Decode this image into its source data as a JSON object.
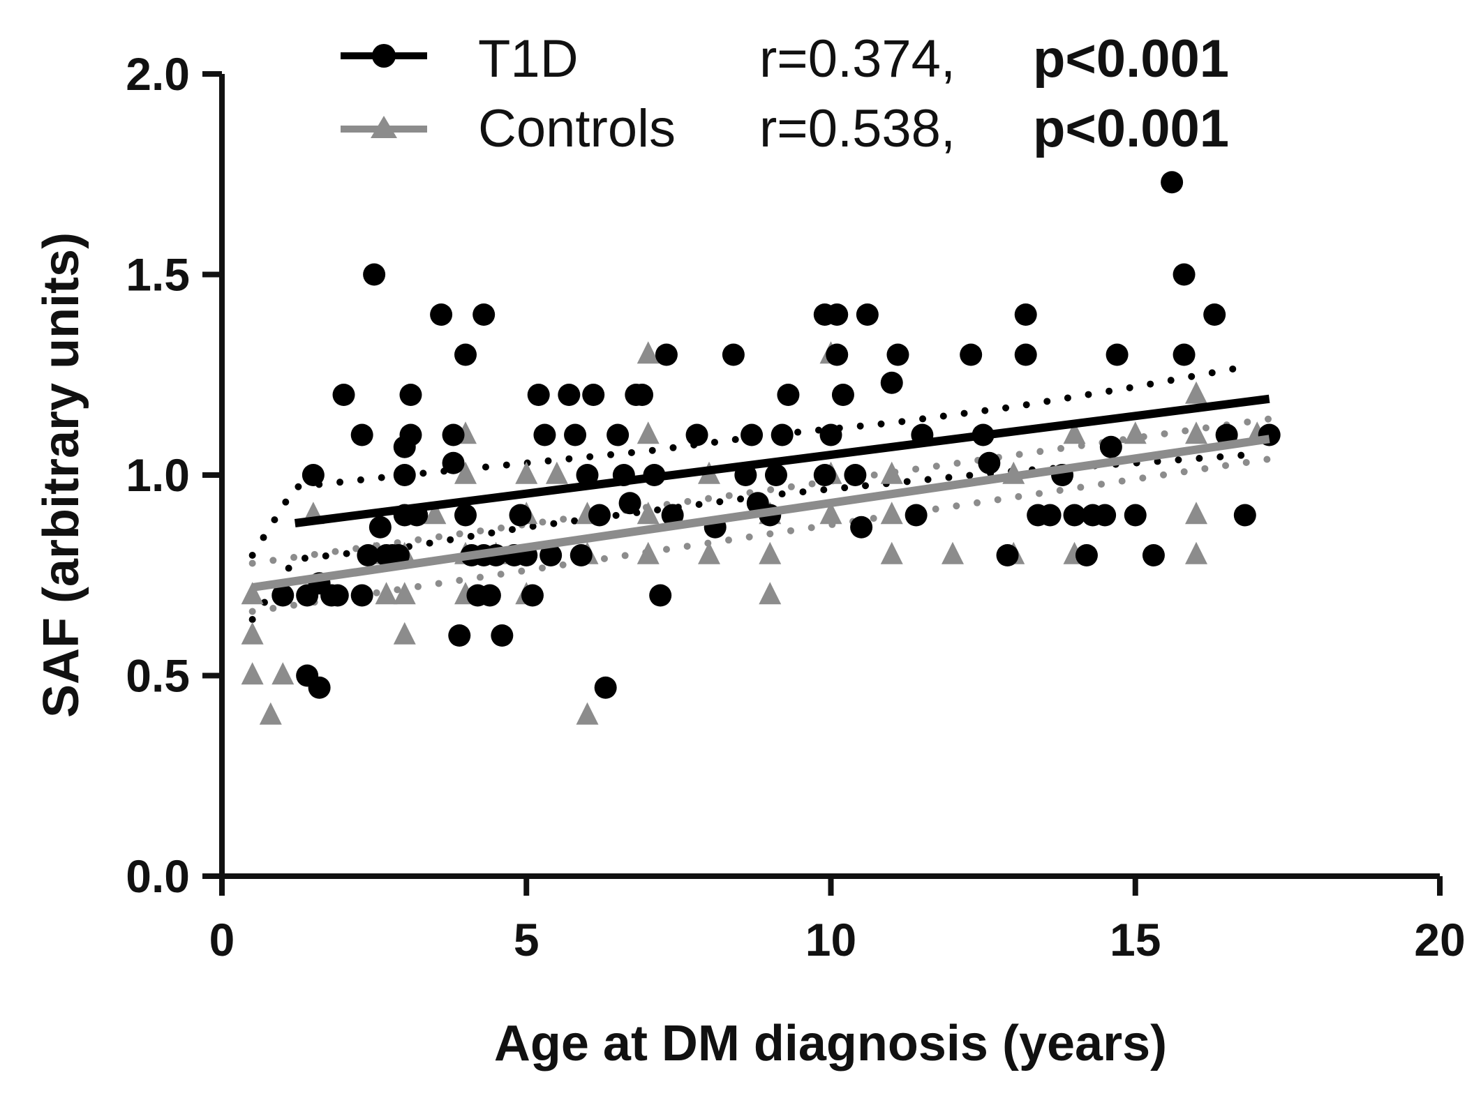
{
  "chart_data": {
    "type": "scatter",
    "title": "",
    "xlabel": "Age at DM diagnosis (years)",
    "ylabel": "SAF (arbitrary units)",
    "xlim": [
      0,
      20
    ],
    "ylim": [
      0,
      2.0
    ],
    "x_ticks": [
      "0",
      "5",
      "10",
      "15",
      "20"
    ],
    "y_ticks": [
      "0.0",
      "0.5",
      "1.0",
      "1.5",
      "2.0"
    ],
    "grid": false,
    "legend_position": "top",
    "series": [
      {
        "name": "T1D",
        "r_text": "r=0.374,",
        "p_text": "p<0.001",
        "marker": "circle",
        "color": "#000000",
        "regression": {
          "x": [
            1.2,
            17.2
          ],
          "y": [
            0.88,
            1.19
          ]
        },
        "ci_upper": {
          "x": [
            0.5,
            1.2,
            3,
            5,
            7,
            9,
            11,
            13,
            15,
            16.8
          ],
          "y": [
            0.8,
            0.97,
            1.0,
            1.03,
            1.06,
            1.1,
            1.13,
            1.17,
            1.22,
            1.27
          ]
        },
        "ci_lower": {
          "x": [
            0.5,
            1.2,
            3,
            5,
            7,
            9,
            11,
            13,
            15,
            16.8
          ],
          "y": [
            0.64,
            0.79,
            0.82,
            0.87,
            0.91,
            0.95,
            0.98,
            1.01,
            1.03,
            1.05
          ]
        },
        "points": [
          [
            1.0,
            0.7
          ],
          [
            1.4,
            0.5
          ],
          [
            1.4,
            0.7
          ],
          [
            1.5,
            1.0
          ],
          [
            1.6,
            0.47
          ],
          [
            1.6,
            0.73
          ],
          [
            1.8,
            0.7
          ],
          [
            1.9,
            0.7
          ],
          [
            2.0,
            1.2
          ],
          [
            2.3,
            1.1
          ],
          [
            2.3,
            0.7
          ],
          [
            2.4,
            0.8
          ],
          [
            2.5,
            1.5
          ],
          [
            2.6,
            0.87
          ],
          [
            2.7,
            0.8
          ],
          [
            2.8,
            0.8
          ],
          [
            2.9,
            0.8
          ],
          [
            3.0,
            1.07
          ],
          [
            3.0,
            1.0
          ],
          [
            3.0,
            0.9
          ],
          [
            3.1,
            1.1
          ],
          [
            3.1,
            1.2
          ],
          [
            3.2,
            0.9
          ],
          [
            3.6,
            1.4
          ],
          [
            3.8,
            1.1
          ],
          [
            3.8,
            1.03
          ],
          [
            3.9,
            0.6
          ],
          [
            4.0,
            1.3
          ],
          [
            4.0,
            0.9
          ],
          [
            4.1,
            0.8
          ],
          [
            4.2,
            0.7
          ],
          [
            4.3,
            1.4
          ],
          [
            4.3,
            0.8
          ],
          [
            4.4,
            0.7
          ],
          [
            4.5,
            0.8
          ],
          [
            4.6,
            0.6
          ],
          [
            4.8,
            0.8
          ],
          [
            4.9,
            0.9
          ],
          [
            5.0,
            0.8
          ],
          [
            5.1,
            0.7
          ],
          [
            5.2,
            1.2
          ],
          [
            5.3,
            1.1
          ],
          [
            5.4,
            0.8
          ],
          [
            5.7,
            1.2
          ],
          [
            5.8,
            1.1
          ],
          [
            5.9,
            0.8
          ],
          [
            6.0,
            1.0
          ],
          [
            6.1,
            1.2
          ],
          [
            6.2,
            0.9
          ],
          [
            6.3,
            0.47
          ],
          [
            6.5,
            1.1
          ],
          [
            6.6,
            1.0
          ],
          [
            6.7,
            0.93
          ],
          [
            6.8,
            1.2
          ],
          [
            6.9,
            1.2
          ],
          [
            7.1,
            1.0
          ],
          [
            7.2,
            0.7
          ],
          [
            7.3,
            1.3
          ],
          [
            7.4,
            0.9
          ],
          [
            7.8,
            1.1
          ],
          [
            8.1,
            0.87
          ],
          [
            8.4,
            1.3
          ],
          [
            8.6,
            1.0
          ],
          [
            8.7,
            1.1
          ],
          [
            8.8,
            0.93
          ],
          [
            9.0,
            0.9
          ],
          [
            9.1,
            1.0
          ],
          [
            9.2,
            1.1
          ],
          [
            9.3,
            1.2
          ],
          [
            9.9,
            1.0
          ],
          [
            9.9,
            1.4
          ],
          [
            10.0,
            1.1
          ],
          [
            10.1,
            1.4
          ],
          [
            10.1,
            1.3
          ],
          [
            10.2,
            1.2
          ],
          [
            10.4,
            1.0
          ],
          [
            10.5,
            0.87
          ],
          [
            10.6,
            1.4
          ],
          [
            11.0,
            1.23
          ],
          [
            11.1,
            1.3
          ],
          [
            11.4,
            0.9
          ],
          [
            11.5,
            1.1
          ],
          [
            12.3,
            1.3
          ],
          [
            12.5,
            1.1
          ],
          [
            12.6,
            1.03
          ],
          [
            12.9,
            0.8
          ],
          [
            13.2,
            1.4
          ],
          [
            13.2,
            1.3
          ],
          [
            13.4,
            0.9
          ],
          [
            13.6,
            0.9
          ],
          [
            13.8,
            1.0
          ],
          [
            14.0,
            0.9
          ],
          [
            14.2,
            0.8
          ],
          [
            14.3,
            0.9
          ],
          [
            14.5,
            0.9
          ],
          [
            14.6,
            1.07
          ],
          [
            14.7,
            1.3
          ],
          [
            15.0,
            0.9
          ],
          [
            15.3,
            0.8
          ],
          [
            15.6,
            1.73
          ],
          [
            15.8,
            1.5
          ],
          [
            15.8,
            1.3
          ],
          [
            16.3,
            1.4
          ],
          [
            16.5,
            1.1
          ],
          [
            16.8,
            0.9
          ],
          [
            17.2,
            1.1
          ]
        ]
      },
      {
        "name": "Controls",
        "r_text": "r=0.538,",
        "p_text": "p<0.001",
        "marker": "triangle",
        "color": "#8c8c8c",
        "regression": {
          "x": [
            0.5,
            17.2
          ],
          "y": [
            0.72,
            1.09
          ]
        },
        "ci_upper": {
          "x": [
            0.5,
            17.2
          ],
          "y": [
            0.78,
            1.14
          ]
        },
        "ci_lower": {
          "x": [
            0.5,
            17.2
          ],
          "y": [
            0.66,
            1.04
          ]
        },
        "points": [
          [
            0.5,
            0.7
          ],
          [
            0.5,
            0.6
          ],
          [
            0.5,
            0.5
          ],
          [
            0.8,
            0.4
          ],
          [
            1.0,
            0.5
          ],
          [
            1.5,
            0.9
          ],
          [
            2.5,
            0.8
          ],
          [
            2.7,
            0.7
          ],
          [
            3.0,
            0.8
          ],
          [
            3.0,
            0.7
          ],
          [
            3.0,
            0.6
          ],
          [
            3.5,
            0.9
          ],
          [
            4.0,
            1.1
          ],
          [
            4.0,
            1.0
          ],
          [
            4.0,
            0.8
          ],
          [
            4.0,
            0.7
          ],
          [
            4.5,
            0.8
          ],
          [
            5.0,
            1.0
          ],
          [
            5.0,
            0.9
          ],
          [
            5.0,
            0.7
          ],
          [
            5.5,
            1.0
          ],
          [
            6.0,
            0.9
          ],
          [
            6.0,
            0.8
          ],
          [
            6.0,
            0.4
          ],
          [
            7.0,
            1.3
          ],
          [
            7.0,
            1.1
          ],
          [
            7.0,
            0.9
          ],
          [
            7.0,
            0.8
          ],
          [
            8.0,
            1.0
          ],
          [
            8.0,
            0.8
          ],
          [
            9.0,
            0.9
          ],
          [
            9.0,
            0.8
          ],
          [
            9.0,
            0.7
          ],
          [
            10.0,
            1.3
          ],
          [
            10.0,
            1.0
          ],
          [
            10.0,
            0.9
          ],
          [
            11.0,
            1.0
          ],
          [
            11.0,
            0.9
          ],
          [
            11.0,
            0.8
          ],
          [
            12.0,
            0.8
          ],
          [
            13.0,
            1.0
          ],
          [
            13.0,
            0.8
          ],
          [
            14.0,
            1.1
          ],
          [
            14.0,
            0.8
          ],
          [
            15.0,
            1.1
          ],
          [
            16.0,
            1.2
          ],
          [
            16.0,
            1.1
          ],
          [
            16.0,
            0.9
          ],
          [
            16.0,
            0.8
          ],
          [
            17.0,
            1.1
          ]
        ]
      }
    ]
  }
}
